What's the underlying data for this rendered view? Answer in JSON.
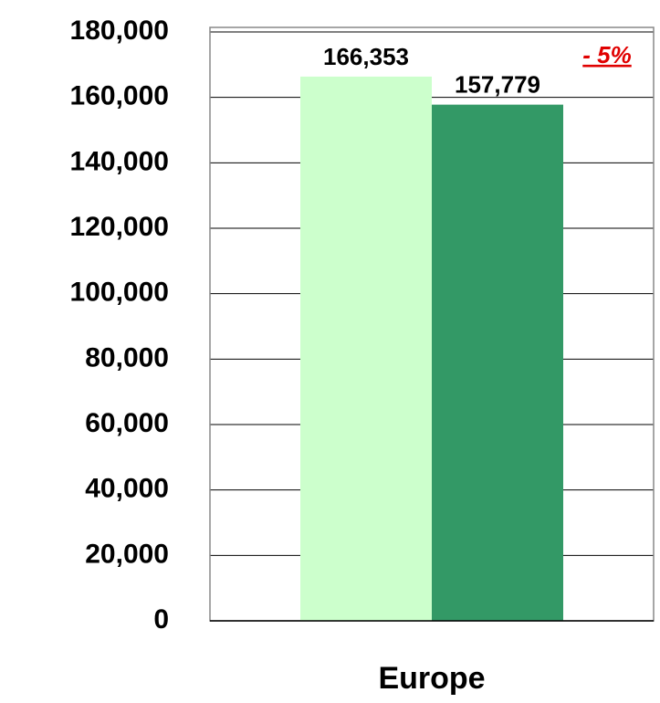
{
  "chart_data": {
    "type": "bar",
    "categories": [
      "Europe"
    ],
    "series": [
      {
        "color": "#ccffcc",
        "values": [
          166353
        ],
        "value_labels": [
          "166,353"
        ]
      },
      {
        "color": "#339966",
        "values": [
          157779
        ],
        "value_labels": [
          "157,779"
        ]
      }
    ],
    "annotation": "- 5%",
    "ylim": [
      0,
      180000
    ],
    "yticks": [
      0,
      {
        "value": 20000,
        "label": "20,000"
      },
      {
        "value": 40000,
        "label": "40,000"
      },
      {
        "value": 60000,
        "label": "60,000"
      },
      {
        "value": 80000,
        "label": "80,000"
      },
      {
        "value": 100000,
        "label": "100,000"
      },
      {
        "value": 120000,
        "label": "120,000"
      },
      {
        "value": 140000,
        "label": "140,000"
      },
      {
        "value": 160000,
        "label": "160,000"
      },
      {
        "value": 180000,
        "label": "180,000"
      }
    ],
    "grid": true
  }
}
